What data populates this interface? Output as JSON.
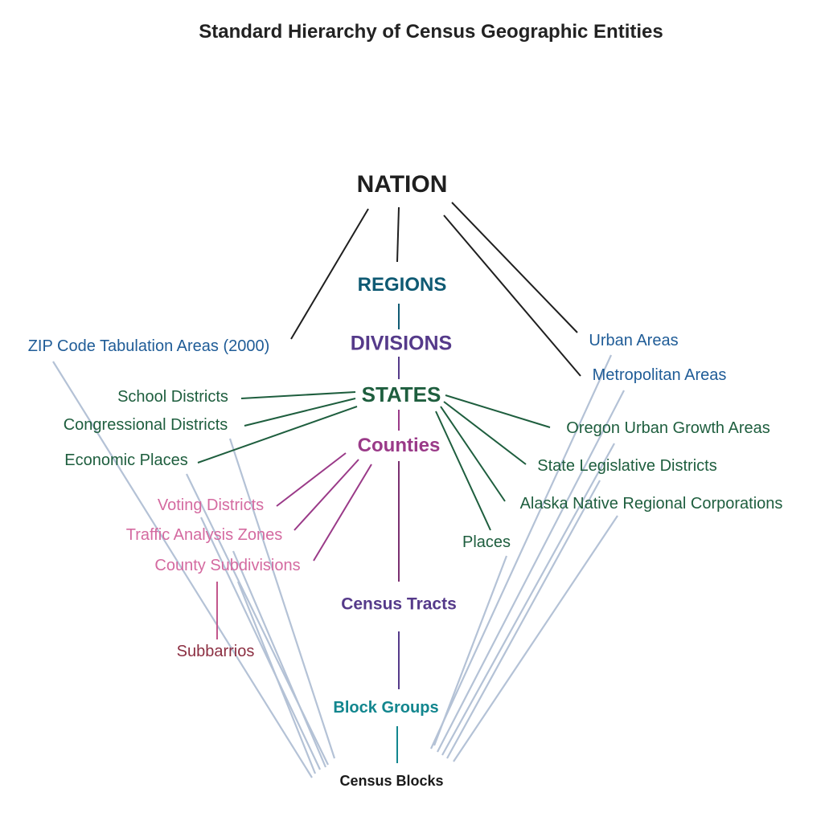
{
  "title": "Standard Hierarchy of Census Geographic Entities",
  "colors": {
    "black": "#1f1f1f",
    "teal_blue": "#0f5a73",
    "purple": "#553a8a",
    "dark_green": "#1e5e3e",
    "magenta": "#9a3a88",
    "pink": "#d46aa0",
    "maroon": "#8c2f42",
    "blue": "#1f5c97",
    "teal": "#12868e",
    "light_link": "#b4c2d6"
  },
  "nodes": {
    "nation": "NATION",
    "regions": "REGIONS",
    "divisions": "DIVISIONS",
    "states": "STATES",
    "counties": "Counties",
    "census_tracts": "Census Tracts",
    "block_groups": "Block Groups",
    "census_blocks": "Census Blocks",
    "zcta": "ZIP Code Tabulation Areas (2000)",
    "urban_areas": "Urban Areas",
    "metropolitan_areas": "Metropolitan Areas",
    "school_districts": "School Districts",
    "congressional_districts": "Congressional Districts",
    "economic_places": "Economic Places",
    "oregon_ugas": "Oregon Urban Growth Areas",
    "state_legislative_districts": "State Legislative Districts",
    "alaska_anrcs": "Alaska Native Regional Corporations",
    "places": "Places",
    "voting_districts": "Voting Districts",
    "traffic_analysis_zones": "Traffic Analysis Zones",
    "county_subdivisions": "County Subdivisions",
    "subbarrios": "Subbarrios"
  }
}
